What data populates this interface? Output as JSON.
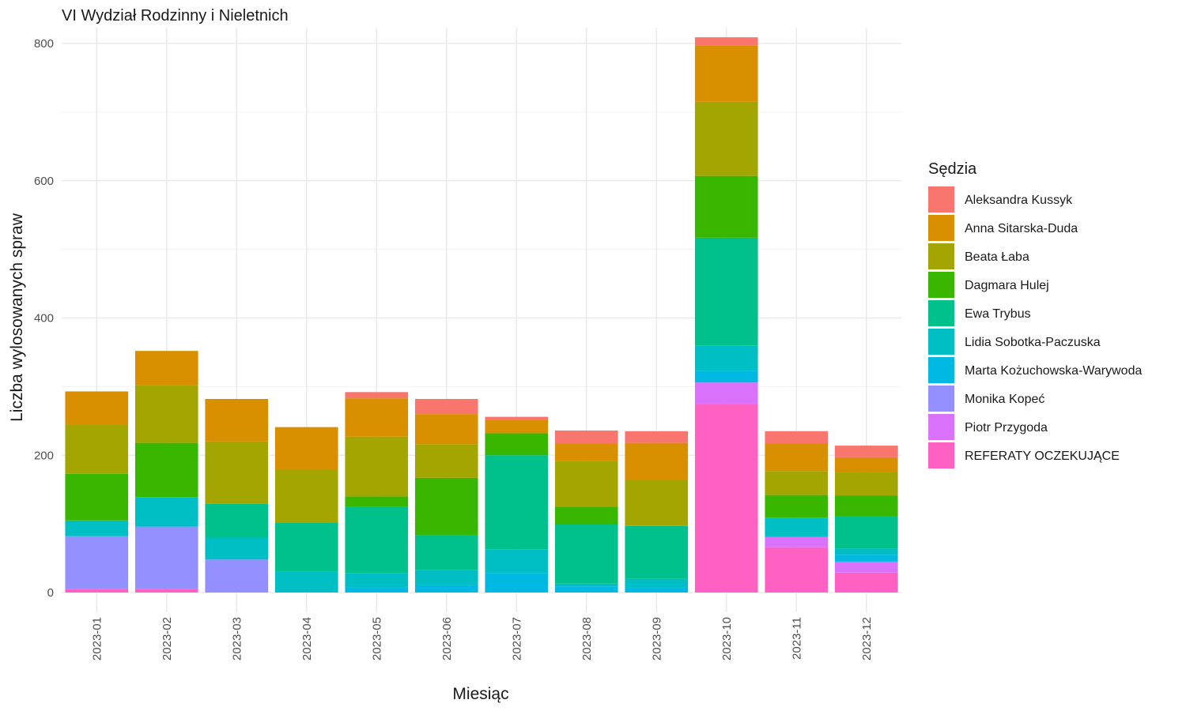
{
  "chart_data": {
    "type": "bar",
    "stacked": true,
    "title": "VI Wydział Rodzinny i Nieletnich",
    "xlabel": "Miesiąc",
    "ylabel": "Liczba wylosowanych spraw",
    "ylim": [
      -30,
      820
    ],
    "y_ticks": [
      0,
      200,
      400,
      600,
      800
    ],
    "grid": true,
    "legend_title": "Sędzia",
    "legend_position": "right",
    "categories": [
      "2023-01",
      "2023-02",
      "2023-03",
      "2023-04",
      "2023-05",
      "2023-06",
      "2023-07",
      "2023-08",
      "2023-09",
      "2023-10",
      "2023-11",
      "2023-12"
    ],
    "series": [
      {
        "name": "REFERATY OCZEKUJĄCE",
        "color": "#FF61C3",
        "values": [
          5,
          5,
          0,
          0,
          0,
          0,
          0,
          0,
          0,
          275,
          66,
          29
        ]
      },
      {
        "name": "Piotr Przygoda",
        "color": "#DB72FB",
        "values": [
          0,
          0,
          0,
          0,
          0,
          0,
          0,
          0,
          0,
          31,
          15,
          16
        ]
      },
      {
        "name": "Monika Kopeć",
        "color": "#9590FF",
        "values": [
          77,
          91,
          48,
          0,
          0,
          0,
          0,
          0,
          0,
          0,
          0,
          0
        ]
      },
      {
        "name": "Marta Kożuchowska-Warywoda",
        "color": "#00B9E3",
        "values": [
          0,
          0,
          0,
          0,
          8,
          11,
          28,
          9,
          8,
          17,
          0,
          10
        ]
      },
      {
        "name": "Lidia Sobotka-Paczuska",
        "color": "#00BFC4",
        "values": [
          23,
          43,
          32,
          31,
          20,
          22,
          35,
          4,
          12,
          37,
          28,
          9
        ]
      },
      {
        "name": "Ewa Trybus",
        "color": "#00C08B",
        "values": [
          0,
          0,
          49,
          71,
          97,
          50,
          137,
          86,
          77,
          157,
          0,
          47
        ]
      },
      {
        "name": "Dagmara Hulej",
        "color": "#39B600",
        "values": [
          68,
          79,
          0,
          0,
          15,
          84,
          32,
          26,
          0,
          90,
          33,
          30
        ]
      },
      {
        "name": "Beata Łaba",
        "color": "#A3A500",
        "values": [
          71,
          84,
          91,
          77,
          87,
          49,
          0,
          67,
          67,
          108,
          35,
          34
        ]
      },
      {
        "name": "Anna Sitarska-Duda",
        "color": "#D89000",
        "values": [
          49,
          50,
          62,
          62,
          56,
          44,
          20,
          25,
          54,
          82,
          40,
          22
        ]
      },
      {
        "name": "Aleksandra Kussyk",
        "color": "#F8766D",
        "values": [
          0,
          0,
          0,
          0,
          9,
          22,
          4,
          19,
          17,
          12,
          18,
          17
        ]
      }
    ],
    "legend_order": [
      "Aleksandra Kussyk",
      "Anna Sitarska-Duda",
      "Beata Łaba",
      "Dagmara Hulej",
      "Ewa Trybus",
      "Lidia Sobotka-Paczuska",
      "Marta Kożuchowska-Warywoda",
      "Monika Kopeć",
      "Piotr Przygoda",
      "REFERATY OCZEKUJĄCE"
    ]
  }
}
